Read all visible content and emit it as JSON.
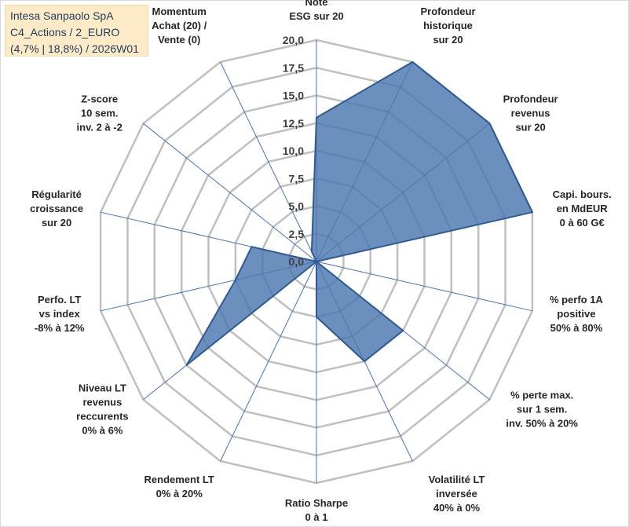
{
  "title_box": {
    "line1": "Intesa Sanpaolo SpA",
    "line2": "C4_Actions / 2_EURO",
    "line3": "(4,7% | 18,8%) / 2026W01"
  },
  "colors": {
    "fill": "#4a78b0",
    "stroke": "#2f5a96",
    "grid": "#bfbfbf",
    "spoke": "#4472c4",
    "title_bg": "#fdebc8"
  },
  "chart_data": {
    "type": "radar",
    "title": "Intesa Sanpaolo SpA",
    "rlim": [
      0,
      20
    ],
    "ticks": [
      "0,0",
      "2,5",
      "5,0",
      "7,5",
      "10,0",
      "12,5",
      "15,0",
      "17,5",
      "20,0"
    ],
    "tick_values": [
      0,
      2.5,
      5,
      7.5,
      10,
      12.5,
      15,
      17.5,
      20
    ],
    "grid": true,
    "axes": [
      {
        "label": [
          "Note",
          "ESG sur 20"
        ],
        "value": 13
      },
      {
        "label": [
          "Profondeur",
          "historique",
          "sur 20"
        ],
        "value": 20
      },
      {
        "label": [
          "Profondeur",
          "revenus",
          "sur 20"
        ],
        "value": 20
      },
      {
        "label": [
          "Capi. bours.",
          "en MdEUR",
          "0 à 60 G€"
        ],
        "value": 20
      },
      {
        "label": [
          "% perfo 1A",
          "positive",
          "50% à 80%"
        ],
        "value": 0
      },
      {
        "label": [
          "% perte max.",
          "sur 1 sem.",
          "inv. 50% à 20%"
        ],
        "value": 10
      },
      {
        "label": [
          "Volatilité LT",
          "inversée",
          "40% à 0%"
        ],
        "value": 10
      },
      {
        "label": [
          "Ratio Sharpe",
          "0 à 1"
        ],
        "value": 5
      },
      {
        "label": [
          "Rendement LT",
          "0% à 20%"
        ],
        "value": 0
      },
      {
        "label": [
          "Niveau LT",
          "revenus",
          "reccurents",
          "0% à 6%"
        ],
        "value": 15
      },
      {
        "label": [
          "Perfo. LT",
          "vs index",
          "-8% à 12%"
        ],
        "value": 7.5
      },
      {
        "label": [
          "Régularité",
          "croissance",
          "sur 20"
        ],
        "value": 6
      },
      {
        "label": [
          "Z-score",
          "10 sem.",
          "inv. 2 à -2"
        ],
        "value": 0
      },
      {
        "label": [
          "Momentum",
          "Achat (20) /",
          "Vente (0)"
        ],
        "value": 1
      }
    ]
  }
}
